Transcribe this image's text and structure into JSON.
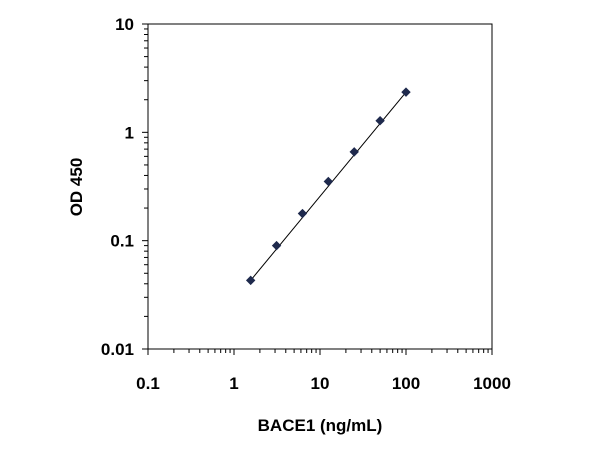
{
  "chart_data": {
    "type": "scatter",
    "xlabel": "BACE1 (ng/mL)",
    "ylabel": "OD 450",
    "xscale": "log",
    "yscale": "log",
    "xlim": [
      0.1,
      1000
    ],
    "ylim": [
      0.01,
      10
    ],
    "x_ticks": [
      "0.1",
      "1",
      "10",
      "100",
      "1000"
    ],
    "y_ticks": [
      "0.01",
      "0.1",
      "1",
      "10"
    ],
    "grid": false,
    "legend": "none",
    "marker": "diamond",
    "marker_color": "#1f2a4d",
    "line_color": "#000000",
    "series": [
      {
        "x": [
          1.5625,
          3.125,
          6.25,
          12.5,
          25,
          50,
          100
        ],
        "y": [
          0.043,
          0.09,
          0.178,
          0.352,
          0.66,
          1.28,
          2.35
        ]
      }
    ],
    "fit_line": {
      "x": [
        1.5625,
        100
      ],
      "y": [
        0.043,
        2.35
      ]
    }
  }
}
